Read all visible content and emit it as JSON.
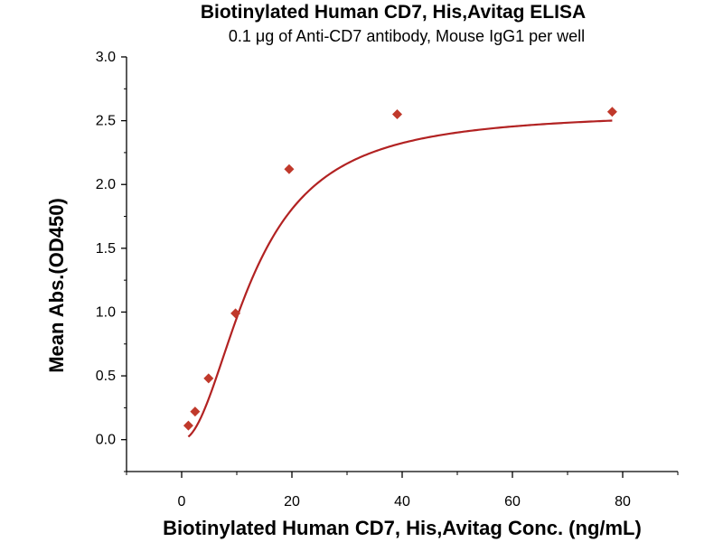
{
  "chart_data": {
    "type": "scatter",
    "title": "Biotinylated Human CD7, His,Avitag ELISA",
    "subtitle": "0.1 μg of Anti-CD7 antibody, Mouse IgG1 per well",
    "xlabel": "Biotinylated Human CD7, His,Avitag Conc. (ng/mL)",
    "ylabel": "Mean Abs.(OD450)",
    "xlim": [
      -10,
      90
    ],
    "ylim": [
      -0.25,
      3.0
    ],
    "xticks": [
      "0",
      "20",
      "40",
      "60",
      "80"
    ],
    "yticks": [
      "0.0",
      "0.5",
      "1.0",
      "1.5",
      "2.0",
      "2.5",
      "3.0"
    ],
    "grid": false,
    "points": {
      "x": [
        1.22,
        2.44,
        4.88,
        9.77,
        19.5,
        39.1,
        78.1
      ],
      "y": [
        0.11,
        0.22,
        0.48,
        0.99,
        2.12,
        2.55,
        2.57
      ]
    },
    "fit_curve": {
      "bottom": 0.0,
      "top": 2.57,
      "ec50": 13.0,
      "hill": 2.0
    },
    "colors": {
      "marker": "#c0392b",
      "curve": "#b22222"
    }
  }
}
